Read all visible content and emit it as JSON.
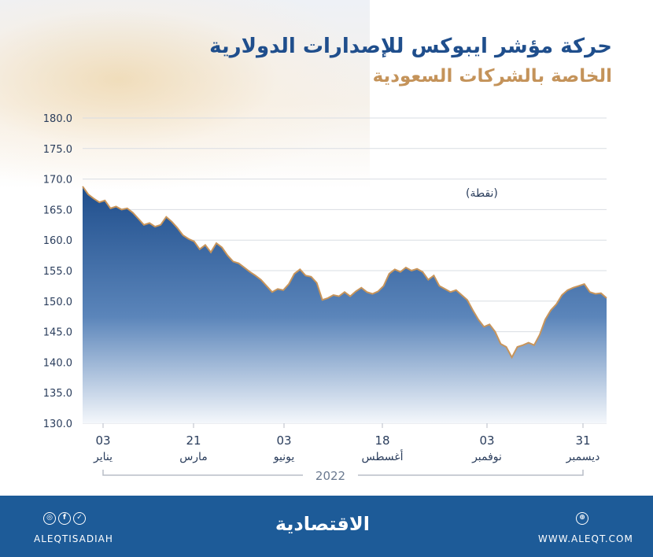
{
  "header": {
    "title_line_1": "حركة مؤشر ايبوكس للإصدارات الدولارية",
    "title_line_2": "الخاصة بالشركات السعودية"
  },
  "chart_data": {
    "type": "area",
    "title": "حركة مؤشر ايبوكس للإصدارات الدولارية الخاصة بالشركات السعودية",
    "unit_label": "(نقطة)",
    "ylim": [
      130,
      180
    ],
    "y_ticks": [
      130,
      135,
      140,
      145,
      150,
      155,
      160,
      165,
      170,
      175,
      180
    ],
    "y_tick_labels": [
      "130.0",
      "135.0",
      "140.0",
      "145.0",
      "150.0",
      "155.0",
      "160.0",
      "165.0",
      "170.0",
      "175.0",
      "180.0"
    ],
    "grid": true,
    "x_ticks": [
      {
        "day": "03",
        "month": "يناير"
      },
      {
        "day": "21",
        "month": "مارس"
      },
      {
        "day": "03",
        "month": "يونيو"
      },
      {
        "day": "18",
        "month": "أغسطس"
      },
      {
        "day": "03",
        "month": "نوفمبر"
      },
      {
        "day": "31",
        "month": "ديسمبر"
      }
    ],
    "year_label": "2022",
    "series": [
      {
        "name": "Iboxx index",
        "values": [
          168.8,
          167.5,
          166.8,
          166.2,
          166.5,
          165.2,
          165.5,
          165.0,
          165.2,
          164.5,
          163.5,
          162.5,
          162.8,
          162.2,
          162.5,
          163.8,
          163.0,
          162.0,
          160.8,
          160.2,
          159.8,
          158.5,
          159.2,
          158.0,
          159.5,
          158.8,
          157.5,
          156.5,
          156.2,
          155.5,
          154.8,
          154.2,
          153.5,
          152.5,
          151.5,
          152.0,
          151.8,
          152.8,
          154.5,
          155.2,
          154.2,
          154.0,
          153.0,
          150.2,
          150.5,
          151.0,
          150.8,
          151.5,
          150.8,
          151.6,
          152.2,
          151.5,
          151.2,
          151.6,
          152.5,
          154.5,
          155.2,
          154.8,
          155.5,
          155.0,
          155.3,
          154.8,
          153.5,
          154.2,
          152.5,
          152.0,
          151.5,
          151.8,
          151.0,
          150.2,
          148.5,
          147.0,
          145.8,
          146.2,
          145.0,
          143.0,
          142.5,
          140.8,
          142.5,
          142.8,
          143.2,
          142.8,
          144.5,
          147.0,
          148.5,
          149.5,
          151.0,
          151.8,
          152.2,
          152.5,
          152.8,
          151.5,
          151.2,
          151.3,
          150.5
        ]
      }
    ],
    "colors": {
      "fill_top": "#1f4e8c",
      "fill_bottom": "#f4f7fb",
      "line": "#c8955b",
      "grid": "#d9dde3",
      "axis_text": "#2a3d5c"
    }
  },
  "footer": {
    "handle": "ALEQTISADIAH",
    "website": "WWW.ALEQT.COM",
    "brand": "الاقتصادية",
    "icons": [
      "instagram-icon",
      "facebook-icon",
      "twitter-icon"
    ],
    "background": "#1d5b98"
  }
}
